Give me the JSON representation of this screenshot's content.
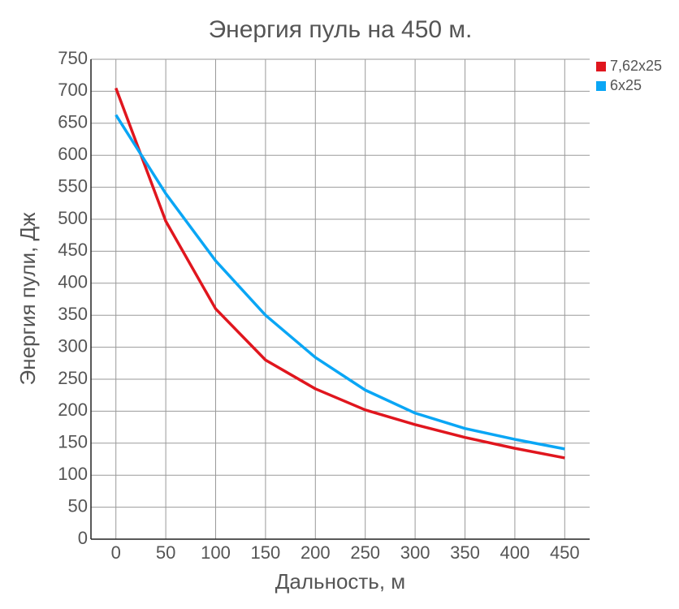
{
  "chart_data": {
    "type": "line",
    "title": "Энергия пуль на 450 м.",
    "x_label": "Дальность, м",
    "y_label": "Энергия пули, Дж",
    "x": [
      0,
      50,
      100,
      150,
      200,
      250,
      300,
      350,
      400,
      450
    ],
    "series": [
      {
        "name": "7,62x25",
        "color": "#e0161e",
        "values": [
          705,
          497,
          360,
          280,
          235,
          202,
          179,
          159,
          142,
          127
        ]
      },
      {
        "name": "6x25",
        "color": "#0aa6f5",
        "values": [
          663,
          540,
          435,
          350,
          284,
          233,
          197,
          173,
          156,
          141
        ]
      }
    ],
    "xlim": [
      -25,
      475
    ],
    "xticks": [
      0,
      50,
      100,
      150,
      200,
      250,
      300,
      350,
      400,
      450
    ],
    "ylim": [
      0,
      750
    ],
    "yticks": [
      0,
      50,
      100,
      150,
      200,
      250,
      300,
      350,
      400,
      450,
      500,
      550,
      600,
      650,
      700,
      750
    ],
    "grid": true,
    "legend": "top-right"
  }
}
